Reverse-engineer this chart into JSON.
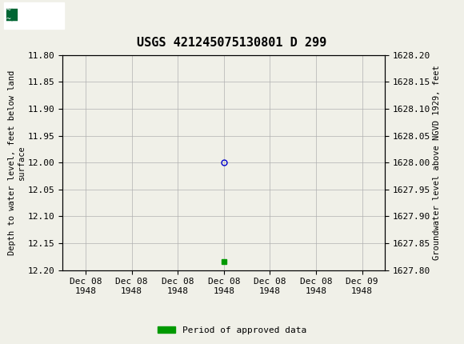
{
  "title": "USGS 421245075130801 D 299",
  "title_fontsize": 11,
  "header_color": "#006633",
  "background_color": "#f0f0e8",
  "plot_bg_color": "#f0f0e8",
  "grid_color": "#b0b0b0",
  "ylabel_left": "Depth to water level, feet below land\nsurface",
  "ylabel_right": "Groundwater level above NGVD 1929, feet",
  "ylim_left_top": 11.8,
  "ylim_left_bottom": 12.2,
  "ylim_right_top": 1628.2,
  "ylim_right_bottom": 1627.8,
  "yticks_left": [
    11.8,
    11.85,
    11.9,
    11.95,
    12.0,
    12.05,
    12.1,
    12.15,
    12.2
  ],
  "yticks_right": [
    1628.2,
    1628.15,
    1628.1,
    1628.05,
    1628.0,
    1627.95,
    1627.9,
    1627.85,
    1627.8
  ],
  "data_point_x": 3,
  "data_point_y": 12.0,
  "data_point_color": "#0000cc",
  "data_point_markersize": 5,
  "green_bar_x": 3,
  "green_bar_y": 12.185,
  "green_bar_color": "#009900",
  "legend_label": "Period of approved data",
  "tick_font_size": 8,
  "label_font_size": 7.5,
  "xlabel_dates": [
    "Dec 08\n1948",
    "Dec 08\n1948",
    "Dec 08\n1948",
    "Dec 08\n1948",
    "Dec 08\n1948",
    "Dec 08\n1948",
    "Dec 09\n1948"
  ],
  "xtick_positions": [
    0,
    1,
    2,
    3,
    4,
    5,
    6
  ],
  "xlim": [
    -0.5,
    6.5
  ]
}
